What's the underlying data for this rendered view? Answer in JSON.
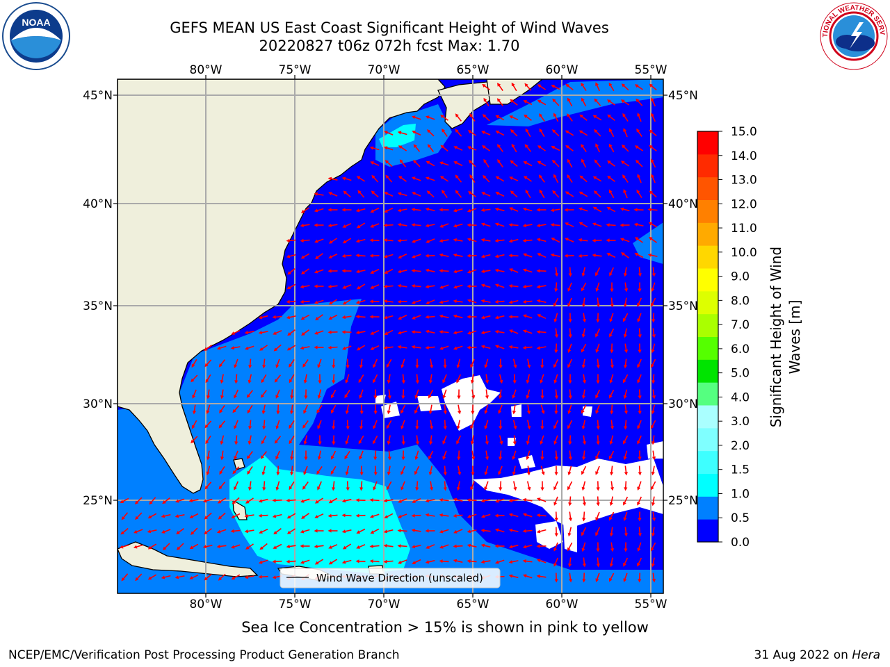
{
  "title": {
    "line1": "GEFS MEAN US East Coast Significant Height of Wind Waves",
    "line2": "20220827 t06z 072h fcst   Max: 1.70"
  },
  "map": {
    "lon_ticks": [
      "80°W",
      "75°W",
      "70°W",
      "65°W",
      "60°W",
      "55°W"
    ],
    "lat_ticks": [
      "45°N",
      "40°N",
      "35°N",
      "30°N",
      "25°N"
    ],
    "legend_label": "Wind Wave Direction (unscaled)",
    "arrow_color": "#ff0000",
    "land_color": "#efefdc",
    "ocean_color": "#0000ff"
  },
  "colorbar": {
    "label_line1": "Significant Height of Wind",
    "label_line2": "Waves [m]",
    "ticks": [
      "0.0",
      "0.5",
      "1.0",
      "1.5",
      "2.0",
      "3.0",
      "4.0",
      "5.0",
      "6.0",
      "7.0",
      "8.0",
      "9.0",
      "10.0",
      "11.0",
      "12.0",
      "13.0",
      "14.0",
      "15.0"
    ],
    "colors": [
      "#0000ff",
      "#0080ff",
      "#00ffff",
      "#3effff",
      "#7fffff",
      "#aaffff",
      "#55ff80",
      "#00e400",
      "#55ff00",
      "#aaff00",
      "#ddff00",
      "#ffff00",
      "#ffd700",
      "#ffaa00",
      "#ff8000",
      "#ff5500",
      "#ff2b00",
      "#ff0000"
    ]
  },
  "footer": {
    "ice_note": "Sea Ice Concentration > 15% is shown in pink to yellow",
    "left": "NCEP/EMC/Verification Post Processing Product Generation Branch",
    "right_date": "31 Aug 2022 on ",
    "right_host": "Hera"
  },
  "logos": {
    "noaa_text": "NOAA",
    "nws_text": "NATIONAL WEATHER SERVICE"
  }
}
